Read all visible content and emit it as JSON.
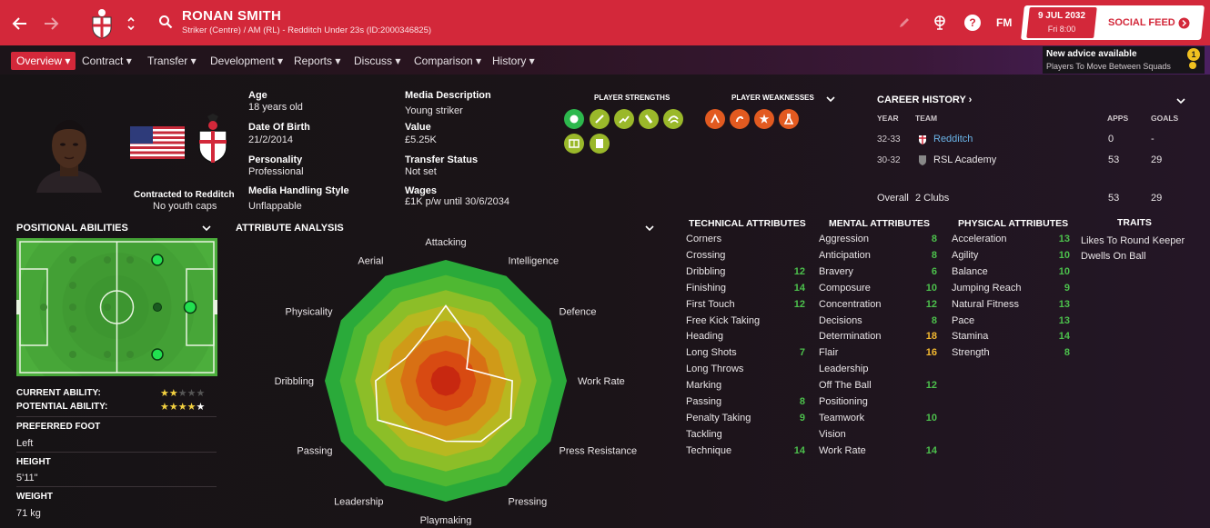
{
  "header": {
    "player_name": "RONAN SMITH",
    "player_subtitle": "Striker (Centre) / AM (RL) - Redditch Under 23s (ID:2000346825)",
    "date": "9 JUL 2032",
    "time": "Fri 8:00",
    "social_feed": "SOCIAL FEED",
    "fm_label": "FM",
    "help_label": "?"
  },
  "nav": {
    "items": [
      "Overview",
      "Contract",
      "Transfer",
      "Development",
      "Reports",
      "Discuss",
      "Comparison",
      "History"
    ]
  },
  "advice": {
    "title": "New advice available",
    "subtitle": "Players To Move Between Squads",
    "count": "1"
  },
  "profile": {
    "contract_line": "Contracted to Redditch",
    "youth_caps": "No youth caps",
    "age_label": "Age",
    "age": "18 years old",
    "dob_label": "Date Of Birth",
    "dob": "21/2/2014",
    "personality_label": "Personality",
    "personality": "Professional",
    "media_style_label": "Media Handling Style",
    "media_style": "Unflappable",
    "media_desc_label": "Media Description",
    "media_desc": "Young striker",
    "value_label": "Value",
    "value": "£5.25K",
    "transfer_status_label": "Transfer Status",
    "transfer_status": "Not set",
    "wages_label": "Wages",
    "wages": "£1K p/w until 30/6/2034"
  },
  "strengths": {
    "strengths_title": "PLAYER STRENGTHS",
    "weaknesses_title": "PLAYER WEAKNESSES"
  },
  "career": {
    "title": "CAREER HISTORY",
    "col_year": "YEAR",
    "col_team": "TEAM",
    "col_apps": "APPS",
    "col_goals": "GOALS",
    "rows": [
      {
        "year": "32-33",
        "team": "Redditch",
        "apps": "0",
        "goals": "-"
      },
      {
        "year": "30-32",
        "team": "RSL Academy",
        "apps": "53",
        "goals": "29"
      }
    ],
    "overall_label": "Overall",
    "overall_clubs": "2 Clubs",
    "overall_apps": "53",
    "overall_goals": "29"
  },
  "positional": {
    "title": "POSITIONAL ABILITIES",
    "current_ability_label": "CURRENT ABILITY:",
    "potential_ability_label": "POTENTIAL ABILITY:",
    "current_ability_stars": 2,
    "potential_ability_stars": 4.5,
    "preferred_foot_label": "PREFERRED FOOT",
    "preferred_foot": "Left",
    "height_label": "HEIGHT",
    "height": "5'11\"",
    "weight_label": "WEIGHT",
    "weight": "71 kg"
  },
  "attribute_analysis": {
    "title": "ATTRIBUTE ANALYSIS",
    "labels": [
      "Attacking",
      "Intelligence",
      "Defence",
      "Work Rate",
      "Press Resistance",
      "Pressing",
      "Playmaking",
      "Leadership",
      "Passing",
      "Dribbling",
      "Physicality",
      "Aerial"
    ]
  },
  "chart_data": {
    "type": "radar",
    "categories": [
      "Attacking",
      "Intelligence",
      "Defence",
      "Work Rate",
      "Press Resistance",
      "Pressing",
      "Playmaking",
      "Leadership",
      "Passing",
      "Dribbling",
      "Physicality",
      "Aerial"
    ],
    "values": [
      0.62,
      0.4,
      0.2,
      0.55,
      0.62,
      0.58,
      0.5,
      0.48,
      0.65,
      0.58,
      0.38,
      0.4
    ],
    "range": [
      0,
      1
    ]
  },
  "technical": {
    "title": "TECHNICAL ATTRIBUTES",
    "rows": [
      {
        "name": "Corners",
        "value": ""
      },
      {
        "name": "Crossing",
        "value": ""
      },
      {
        "name": "Dribbling",
        "value": "12"
      },
      {
        "name": "Finishing",
        "value": "14"
      },
      {
        "name": "First Touch",
        "value": "12"
      },
      {
        "name": "Free Kick Taking",
        "value": ""
      },
      {
        "name": "Heading",
        "value": ""
      },
      {
        "name": "Long Shots",
        "value": "7"
      },
      {
        "name": "Long Throws",
        "value": ""
      },
      {
        "name": "Marking",
        "value": ""
      },
      {
        "name": "Passing",
        "value": "8"
      },
      {
        "name": "Penalty Taking",
        "value": "9"
      },
      {
        "name": "Tackling",
        "value": ""
      },
      {
        "name": "Technique",
        "value": "14"
      }
    ]
  },
  "mental": {
    "title": "MENTAL ATTRIBUTES",
    "rows": [
      {
        "name": "Aggression",
        "value": "8"
      },
      {
        "name": "Anticipation",
        "value": "8"
      },
      {
        "name": "Bravery",
        "value": "6"
      },
      {
        "name": "Composure",
        "value": "10"
      },
      {
        "name": "Concentration",
        "value": "12"
      },
      {
        "name": "Decisions",
        "value": "8"
      },
      {
        "name": "Determination",
        "value": "18"
      },
      {
        "name": "Flair",
        "value": "16"
      },
      {
        "name": "Leadership",
        "value": ""
      },
      {
        "name": "Off The Ball",
        "value": "12"
      },
      {
        "name": "Positioning",
        "value": ""
      },
      {
        "name": "Teamwork",
        "value": "10"
      },
      {
        "name": "Vision",
        "value": ""
      },
      {
        "name": "Work Rate",
        "value": "14"
      }
    ]
  },
  "physical": {
    "title": "PHYSICAL ATTRIBUTES",
    "rows": [
      {
        "name": "Acceleration",
        "value": "13"
      },
      {
        "name": "Agility",
        "value": "10"
      },
      {
        "name": "Balance",
        "value": "10"
      },
      {
        "name": "Jumping Reach",
        "value": "9"
      },
      {
        "name": "Natural Fitness",
        "value": "13"
      },
      {
        "name": "Pace",
        "value": "13"
      },
      {
        "name": "Stamina",
        "value": "14"
      },
      {
        "name": "Strength",
        "value": "8"
      }
    ]
  },
  "traits": {
    "title": "TRAITS",
    "items": [
      "Likes To Round Keeper",
      "Dwells On Ball"
    ]
  },
  "colors": {
    "brand_red": "#d3283a",
    "good_green": "#4cc04c",
    "high_yellow": "#f2b830"
  }
}
